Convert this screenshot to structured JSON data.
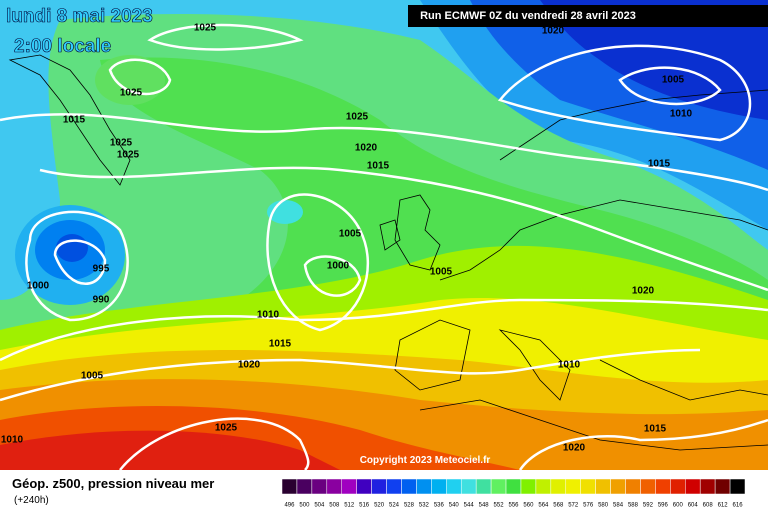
{
  "header": {
    "date": "lundi 8 mai 2023",
    "time": "2:00 locale",
    "run": "Run ECMWF 0Z du vendredi 28 avril 2023"
  },
  "isobar_labels": [
    1025,
    1020,
    1005,
    1010,
    1025,
    1015,
    1025,
    1025,
    1025,
    1020,
    1015,
    1015,
    1005,
    995,
    1000,
    1005,
    1000,
    990,
    1020,
    1010,
    1015,
    1020,
    1010,
    1005,
    1025,
    1015,
    1010,
    1020
  ],
  "copyright": "Copyright 2023 Meteociel.fr",
  "legend": {
    "title": "Géop. z500, pression niveau mer",
    "subtitle": "(+240h)",
    "scale": [
      496,
      500,
      504,
      508,
      512,
      516,
      520,
      524,
      528,
      532,
      536,
      540,
      544,
      548,
      552,
      556,
      560,
      564,
      568,
      572,
      576,
      580,
      584,
      588,
      592,
      596,
      600,
      604,
      608,
      612,
      616
    ],
    "scale_colors": [
      "#2a0030",
      "#4a0060",
      "#6a0080",
      "#8a00a0",
      "#a000c0",
      "#4000c0",
      "#2020e0",
      "#1040f0",
      "#0060f0",
      "#0090f0",
      "#00b0f0",
      "#20d0f0",
      "#40e0e0",
      "#40e0a0",
      "#60f060",
      "#40e040",
      "#80f000",
      "#c0f000",
      "#e0f000",
      "#f0f000",
      "#f0e000",
      "#f0c000",
      "#f0a000",
      "#f08000",
      "#f06000",
      "#f04000",
      "#e02000",
      "#d00000",
      "#a00000",
      "#700000",
      "#000000"
    ]
  }
}
